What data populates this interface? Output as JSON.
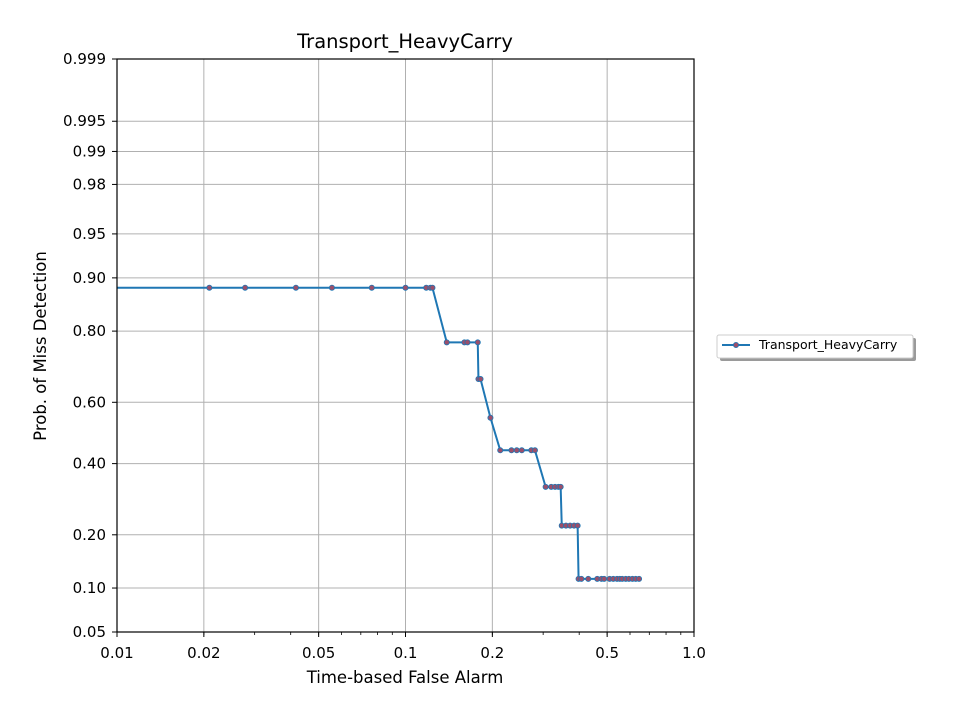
{
  "chart_data": {
    "type": "line",
    "title": "Transport_HeavyCarry",
    "xlabel": "Time-based False Alarm",
    "ylabel": "Prob. of Miss Detection",
    "x_scale": "log",
    "y_scale": "normal-deviate",
    "xlim": [
      0.01,
      1.0
    ],
    "ylim": [
      0.05,
      0.999
    ],
    "x_ticks": [
      0.01,
      0.02,
      0.05,
      0.1,
      0.2,
      0.5,
      1.0
    ],
    "x_tick_labels": [
      "0.01",
      "0.02",
      "0.05",
      "0.1",
      "0.2",
      "0.5",
      "1.0"
    ],
    "y_ticks": [
      0.05,
      0.1,
      0.2,
      0.4,
      0.6,
      0.8,
      0.9,
      0.95,
      0.98,
      0.99,
      0.995,
      0.999
    ],
    "y_tick_labels": [
      "0.05",
      "0.10",
      "0.20",
      "0.40",
      "0.60",
      "0.80",
      "0.90",
      "0.95",
      "0.98",
      "0.99",
      "0.995",
      "0.999"
    ],
    "grid": true,
    "legend_position": "right",
    "series": [
      {
        "name": "Transport_HeavyCarry",
        "color": "#1f77b4",
        "marker_color": "#9b4f6b",
        "x": [
          0.01,
          0.0209,
          0.0278,
          0.0417,
          0.0556,
          0.0764,
          0.1,
          0.118,
          0.122,
          0.124,
          0.139,
          0.16,
          0.164,
          0.178,
          0.179,
          0.182,
          0.197,
          0.213,
          0.233,
          0.243,
          0.253,
          0.273,
          0.281,
          0.306,
          0.32,
          0.33,
          0.339,
          0.345,
          0.348,
          0.36,
          0.372,
          0.384,
          0.395,
          0.398,
          0.407,
          0.43,
          0.462,
          0.478,
          0.488,
          0.51,
          0.525,
          0.541,
          0.553,
          0.564,
          0.58,
          0.595,
          0.612,
          0.628,
          0.645
        ],
        "y": [
          0.885,
          0.885,
          0.885,
          0.885,
          0.885,
          0.885,
          0.885,
          0.885,
          0.885,
          0.885,
          0.773,
          0.773,
          0.773,
          0.773,
          0.672,
          0.672,
          0.55,
          0.443,
          0.443,
          0.443,
          0.443,
          0.443,
          0.443,
          0.328,
          0.328,
          0.328,
          0.328,
          0.328,
          0.222,
          0.222,
          0.222,
          0.222,
          0.222,
          0.114,
          0.114,
          0.114,
          0.114,
          0.114,
          0.114,
          0.114,
          0.114,
          0.114,
          0.114,
          0.114,
          0.114,
          0.114,
          0.114,
          0.114,
          0.114
        ],
        "step_vertical_at": [
          0.178,
          0.345
        ]
      }
    ]
  }
}
